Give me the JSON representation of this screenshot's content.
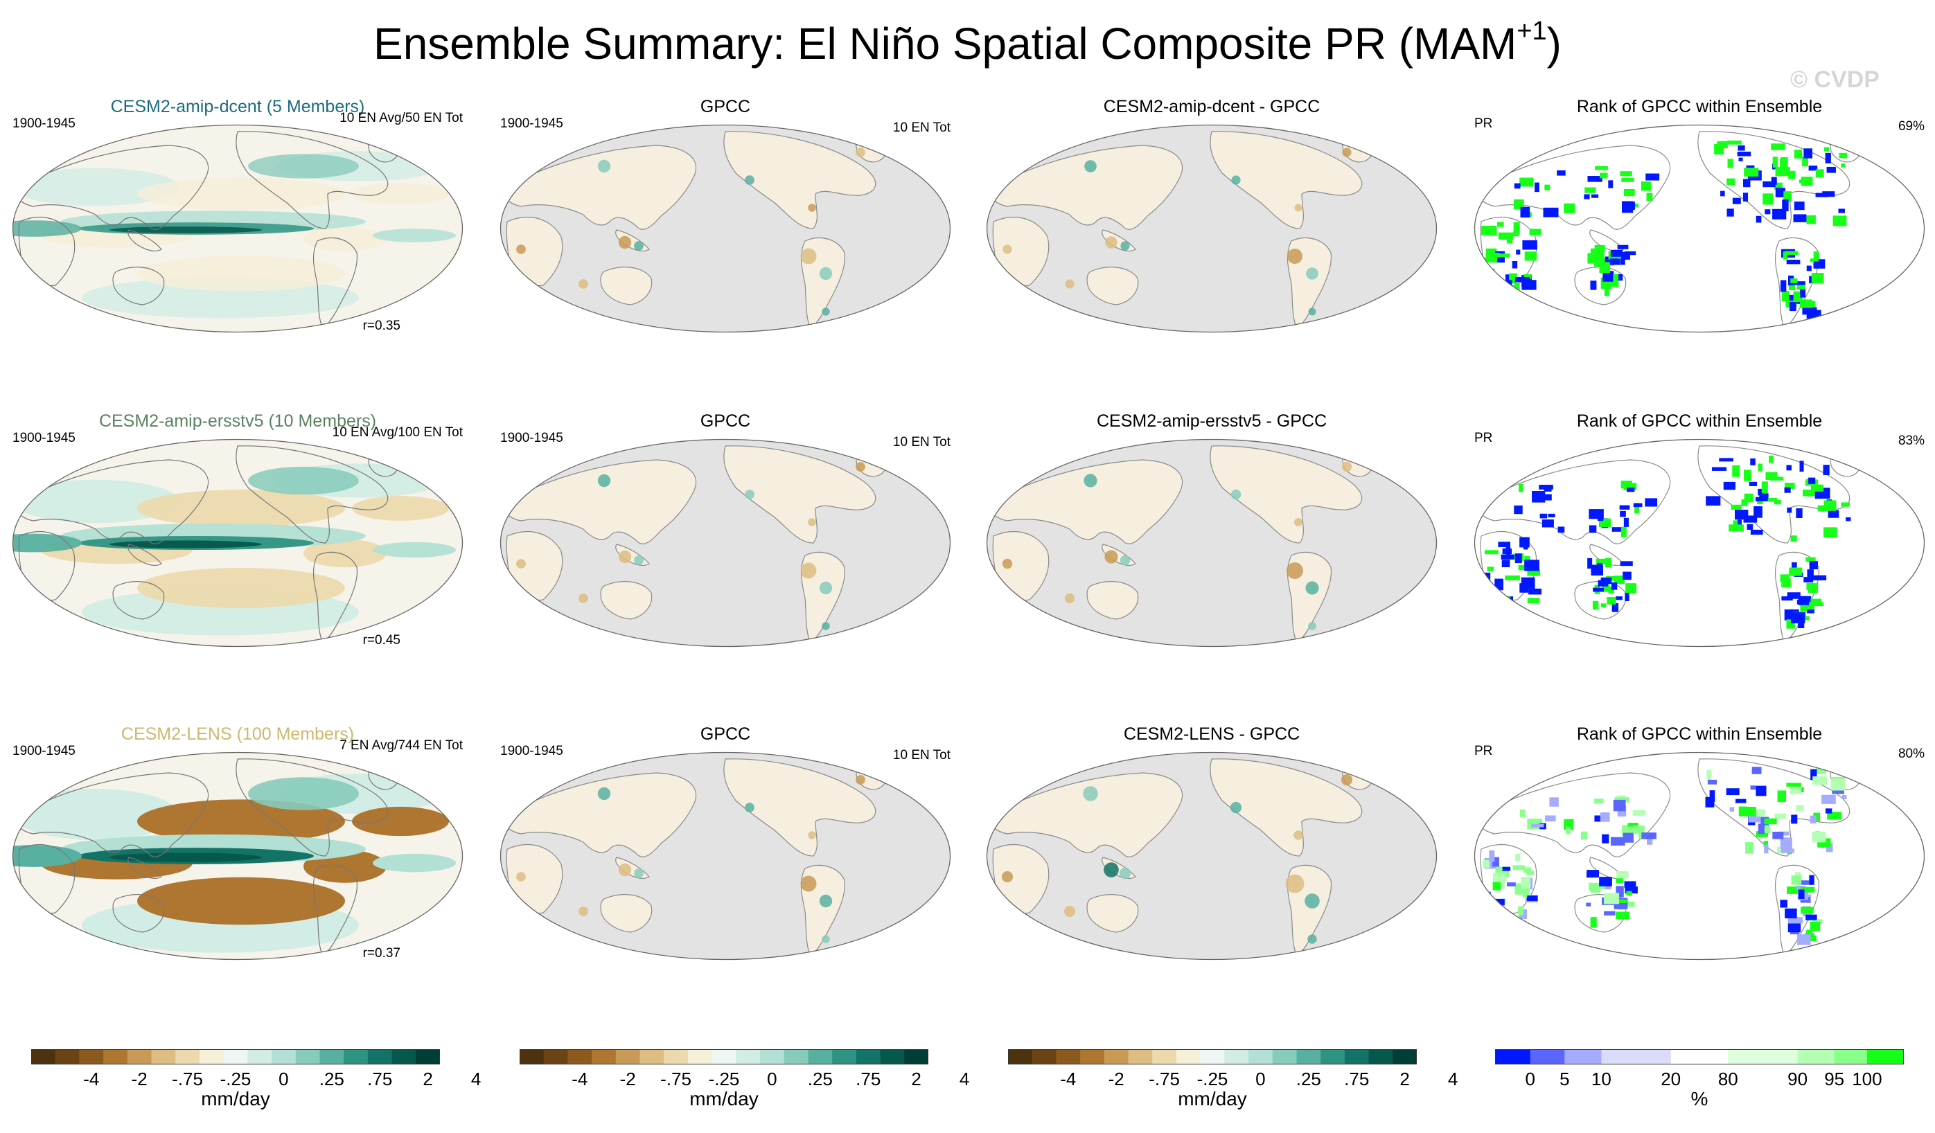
{
  "figure": {
    "title_main": "Ensemble Summary: El Niño Spatial Composite PR (MAM",
    "title_sup": "+1",
    "title_close": ")",
    "watermark": "© CVDP"
  },
  "colors": {
    "brown_green": [
      "#4d3210",
      "#6b4415",
      "#8c5a1d",
      "#ae7630",
      "#c99a55",
      "#ddbd82",
      "#ecd9ae",
      "#f6efd9",
      "#eef7f3",
      "#d2ede5",
      "#b2e0d4",
      "#87cbbb",
      "#58b0a0",
      "#2f9383",
      "#137366",
      "#06574c",
      "#003d35"
    ],
    "rank": [
      "#0018ff",
      "#5a66ff",
      "#a5acff",
      "#dadcfa",
      "#ffffff",
      "#ddffdd",
      "#b4ffb4",
      "#8aff8a",
      "#16ff16"
    ],
    "ocean_gray": "#e3e3e3",
    "title_row1": "#1a6b80",
    "title_row2": "#5a8260",
    "title_row3": "#cdb86e"
  },
  "chart_data": [
    {
      "type": "heatmap",
      "row": 1,
      "column": 1,
      "title": "CESM2-amip-dcent (5 Members)",
      "period": "1900-1945",
      "note": "10 EN Avg/50 EN Tot",
      "r": "r=0.35",
      "field": "model",
      "amplitude": 0.85
    },
    {
      "type": "heatmap",
      "row": 1,
      "column": 2,
      "title": "GPCC",
      "period": "1900-1945",
      "note": "10 EN Tot",
      "field": "obs"
    },
    {
      "type": "heatmap",
      "row": 1,
      "column": 3,
      "title": "CESM2-amip-dcent - GPCC",
      "field": "diff",
      "amplitude": 0.8
    },
    {
      "type": "heatmap",
      "row": 1,
      "column": 4,
      "title": "Rank of GPCC within Ensemble",
      "variable": "PR",
      "pct": "69%",
      "field": "rank",
      "intensity": 1.0
    },
    {
      "type": "heatmap",
      "row": 2,
      "column": 1,
      "title": "CESM2-amip-ersstv5 (10 Members)",
      "period": "1900-1945",
      "note": "10 EN Avg/100 EN Tot",
      "r": "r=0.45",
      "field": "model",
      "amplitude": 1.15
    },
    {
      "type": "heatmap",
      "row": 2,
      "column": 2,
      "title": "GPCC",
      "period": "1900-1945",
      "note": "10 EN Tot",
      "field": "obs"
    },
    {
      "type": "heatmap",
      "row": 2,
      "column": 3,
      "title": "CESM2-amip-ersstv5 - GPCC",
      "field": "diff",
      "amplitude": 1.0
    },
    {
      "type": "heatmap",
      "row": 2,
      "column": 4,
      "title": "Rank of GPCC within Ensemble",
      "variable": "PR",
      "pct": "83%",
      "field": "rank",
      "intensity": 1.0
    },
    {
      "type": "heatmap",
      "row": 3,
      "column": 1,
      "title": "CESM2-LENS (100 Members)",
      "period": "1900-1945",
      "note": "7 EN Avg/744 EN Tot",
      "r": "r=0.37",
      "field": "model",
      "amplitude": 1.6
    },
    {
      "type": "heatmap",
      "row": 3,
      "column": 2,
      "title": "GPCC",
      "period": "1900-1945",
      "note": "10 EN Tot",
      "field": "obs"
    },
    {
      "type": "heatmap",
      "row": 3,
      "column": 3,
      "title": "CESM2-LENS - GPCC",
      "field": "diff",
      "amplitude": 1.3
    },
    {
      "type": "heatmap",
      "row": 3,
      "column": 4,
      "title": "Rank of GPCC within Ensemble",
      "variable": "PR",
      "pct": "80%",
      "field": "rank",
      "intensity": 0.55
    }
  ],
  "colorbars": [
    {
      "labels": [
        "-4",
        "-2",
        "-.75",
        "-.25",
        "0",
        ".25",
        ".75",
        "2",
        "4"
      ],
      "unit": "mm/day",
      "palette": "brown_green"
    },
    {
      "labels": [
        "-4",
        "-2",
        "-.75",
        "-.25",
        "0",
        ".25",
        ".75",
        "2",
        "4"
      ],
      "unit": "mm/day",
      "palette": "brown_green"
    },
    {
      "labels": [
        "-4",
        "-2",
        "-.75",
        "-.25",
        "0",
        ".25",
        ".75",
        "2",
        "4"
      ],
      "unit": "mm/day",
      "palette": "brown_green"
    },
    {
      "labels": [
        "0",
        "5",
        "10",
        "20",
        "80",
        "90",
        "95",
        "100"
      ],
      "unit": "%",
      "palette": "rank"
    }
  ]
}
